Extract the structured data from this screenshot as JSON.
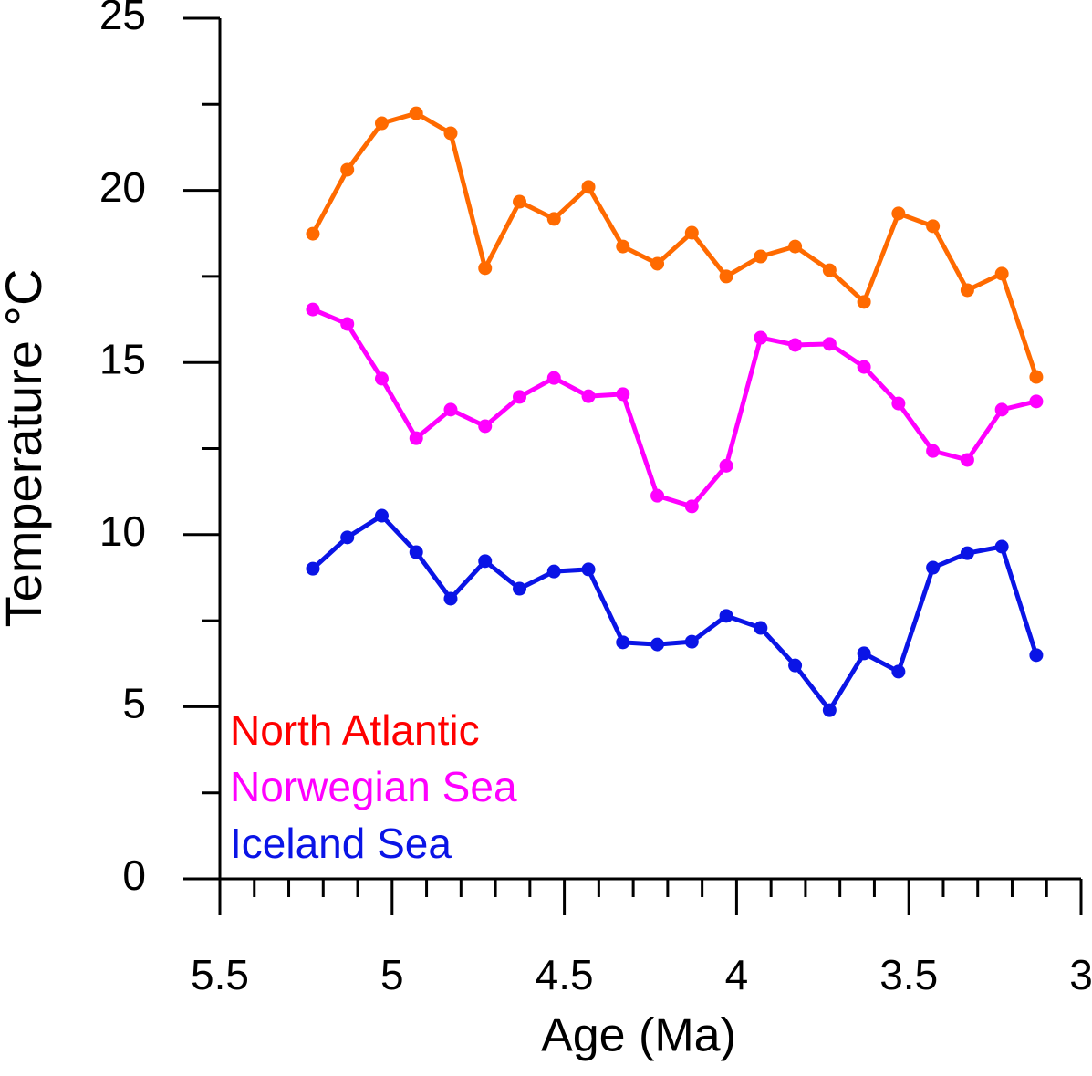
{
  "chart_data": {
    "type": "line",
    "x_label": "Age (Ma)",
    "y_label": "Temperature °C",
    "xlim": [
      5.5,
      3
    ],
    "xticks": [
      5.5,
      5,
      4.5,
      4,
      3.5,
      3
    ],
    "x_minor_ticks": [
      5.4,
      5.3,
      5.2,
      5.1,
      4.9,
      4.8,
      4.7,
      4.6,
      4.4,
      4.3,
      4.2,
      4.1,
      3.9,
      3.8,
      3.7,
      3.6,
      3.4,
      3.3,
      3.2,
      3.1
    ],
    "ylim": [
      0,
      25
    ],
    "yticks": [
      0,
      5,
      10,
      15,
      20,
      25
    ],
    "y_minor_ticks": [
      2.5,
      7.5,
      12.5,
      17.5,
      22.5
    ],
    "x": [
      5.23,
      5.13,
      5.03,
      4.93,
      4.83,
      4.73,
      4.63,
      4.53,
      4.43,
      4.33,
      4.23,
      4.13,
      4.03,
      3.93,
      3.83,
      3.73,
      3.63,
      3.53,
      3.43,
      3.33,
      3.23,
      3.13
    ],
    "series": [
      {
        "name": "North Atlantic",
        "color": "#ff6a00",
        "label_color": "#ff0000",
        "values": [
          18.74,
          20.6,
          21.95,
          22.24,
          21.66,
          17.74,
          19.67,
          19.17,
          20.1,
          18.37,
          17.87,
          18.77,
          17.5,
          18.08,
          18.37,
          17.68,
          16.76,
          19.33,
          18.96,
          17.1,
          17.58,
          14.58
        ]
      },
      {
        "name": "Norwegian Sea",
        "color": "#ff00ff",
        "label_color": "#ff00ff",
        "values": [
          16.54,
          16.12,
          14.53,
          12.8,
          13.63,
          13.15,
          14.0,
          14.55,
          14.02,
          14.08,
          11.13,
          10.82,
          12.0,
          15.72,
          15.51,
          15.54,
          14.87,
          13.81,
          12.43,
          12.17,
          13.63,
          13.87
        ]
      },
      {
        "name": "Iceland Sea",
        "color": "#0a14e6",
        "label_color": "#0a14e6",
        "values": [
          9.01,
          9.92,
          10.55,
          9.49,
          8.14,
          9.23,
          8.43,
          8.93,
          8.99,
          6.87,
          6.81,
          6.89,
          7.64,
          7.29,
          6.2,
          4.9,
          6.55,
          6.02,
          9.04,
          9.46,
          9.65,
          6.5
        ]
      }
    ]
  }
}
